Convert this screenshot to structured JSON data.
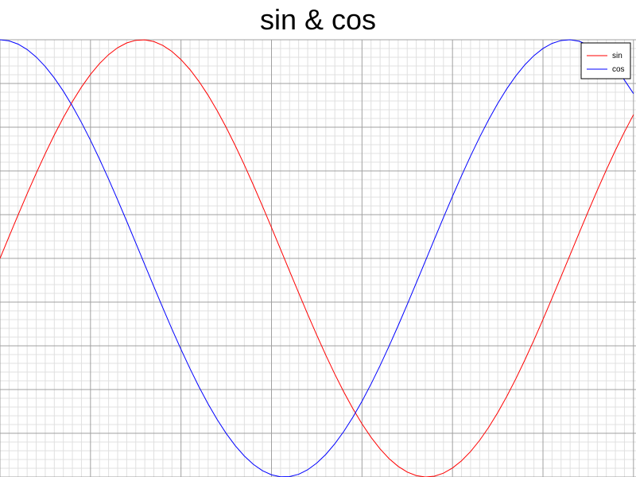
{
  "chart_data": {
    "type": "line",
    "title": "sin & cos",
    "xlabel": "",
    "ylabel": "",
    "xlim": [
      0,
      7
    ],
    "ylim": [
      -1,
      1
    ],
    "grid": true,
    "legend_position": "top-right",
    "x": [
      0.0,
      0.1,
      0.2,
      0.3,
      0.4,
      0.5,
      0.6,
      0.7,
      0.8,
      0.9,
      1.0,
      1.1,
      1.2,
      1.3,
      1.4,
      1.5,
      1.6,
      1.7,
      1.8,
      1.9,
      2.0,
      2.1,
      2.2,
      2.3,
      2.4,
      2.5,
      2.6,
      2.7,
      2.8,
      2.9,
      3.0,
      3.1,
      3.2,
      3.3,
      3.4,
      3.5,
      3.6,
      3.7,
      3.8,
      3.9,
      4.0,
      4.1,
      4.2,
      4.3,
      4.4,
      4.5,
      4.6,
      4.7,
      4.8,
      4.9,
      5.0,
      5.1,
      5.2,
      5.3,
      5.4,
      5.5,
      5.6,
      5.7,
      5.8,
      5.9,
      6.0,
      6.1,
      6.2,
      6.3,
      6.4,
      6.5,
      6.6,
      6.7,
      6.8,
      6.9,
      7.0
    ],
    "series": [
      {
        "name": "sin",
        "color": "#ff0000",
        "values": [
          0.0,
          0.0998,
          0.1987,
          0.2955,
          0.3894,
          0.4794,
          0.5646,
          0.6442,
          0.7174,
          0.7833,
          0.8415,
          0.8912,
          0.932,
          0.9636,
          0.9854,
          0.9975,
          0.9996,
          0.9917,
          0.9738,
          0.9463,
          0.9093,
          0.8632,
          0.8085,
          0.7457,
          0.6755,
          0.5985,
          0.5155,
          0.4274,
          0.335,
          0.2392,
          0.1411,
          0.0416,
          -0.0584,
          -0.1577,
          -0.2555,
          -0.3508,
          -0.4425,
          -0.5298,
          -0.6119,
          -0.6878,
          -0.7568,
          -0.8183,
          -0.8716,
          -0.9162,
          -0.9516,
          -0.9775,
          -0.9937,
          -0.9999,
          -0.9962,
          -0.9825,
          -0.9589,
          -0.9258,
          -0.8835,
          -0.8323,
          -0.7728,
          -0.7055,
          -0.6313,
          -0.5507,
          -0.4646,
          -0.3739,
          -0.2794,
          -0.1822,
          -0.0831,
          0.0168,
          0.1165,
          0.2151,
          0.3115,
          0.4048,
          0.4941,
          0.5784,
          0.657
        ]
      },
      {
        "name": "cos",
        "color": "#0000ff",
        "values": [
          1.0,
          0.995,
          0.9801,
          0.9553,
          0.9211,
          0.8776,
          0.8253,
          0.7648,
          0.6967,
          0.6216,
          0.5403,
          0.4536,
          0.3624,
          0.2675,
          0.17,
          0.0707,
          -0.0292,
          -0.1288,
          -0.2272,
          -0.3233,
          -0.4161,
          -0.5048,
          -0.5885,
          -0.6663,
          -0.7374,
          -0.8011,
          -0.8569,
          -0.9041,
          -0.9422,
          -0.971,
          -0.99,
          -0.9991,
          -0.9983,
          -0.9875,
          -0.9668,
          -0.9365,
          -0.8968,
          -0.8481,
          -0.791,
          -0.7259,
          -0.6536,
          -0.5748,
          -0.4903,
          -0.4008,
          -0.3073,
          -0.2108,
          -0.1122,
          -0.0124,
          0.0875,
          0.1865,
          0.2837,
          0.378,
          0.4685,
          0.5544,
          0.6347,
          0.7087,
          0.7756,
          0.8347,
          0.8855,
          0.9275,
          0.9602,
          0.9833,
          0.9965,
          0.9999,
          0.9932,
          0.9766,
          0.9502,
          0.9144,
          0.8694,
          0.8157,
          0.7539
        ]
      }
    ]
  }
}
